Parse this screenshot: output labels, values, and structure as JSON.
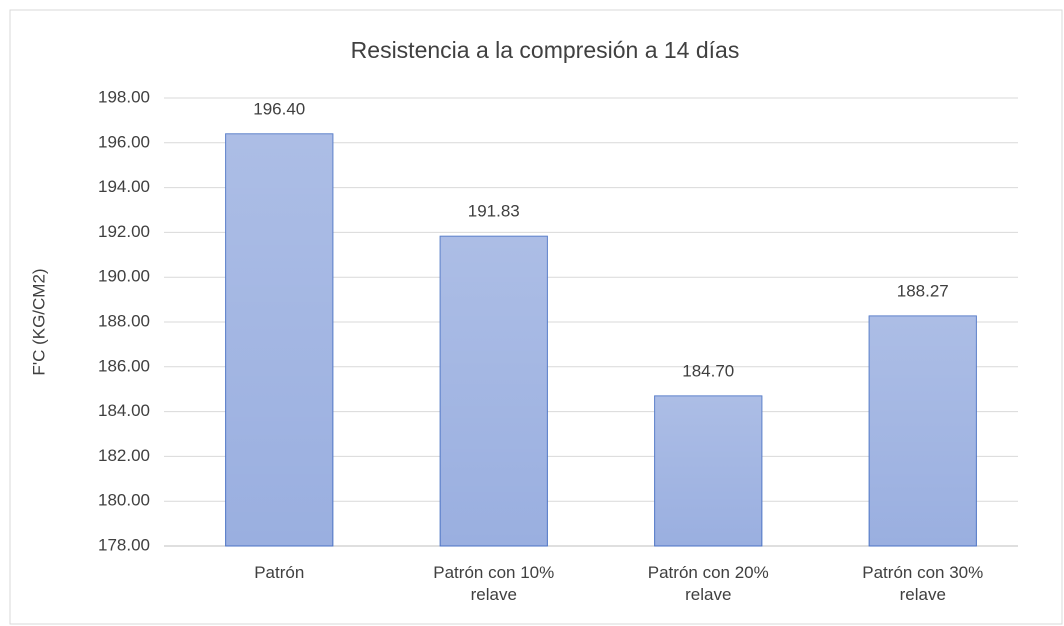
{
  "chart_data": {
    "type": "bar",
    "title": "Resistencia a la compresión a 14 días",
    "y_label": "F'C (KG/CM2)",
    "categories": [
      "Patrón",
      "Patrón con 10% relave",
      "Patrón con 20% relave",
      "Patrón con 30% relave"
    ],
    "values": [
      196.4,
      191.83,
      184.7,
      188.27
    ],
    "value_labels": [
      "196.40",
      "191.83",
      "184.70",
      "188.27"
    ],
    "color": "#9aafe0",
    "ylim": [
      178,
      198
    ],
    "yticks": [
      {
        "value": 178,
        "label": "178.00"
      },
      {
        "value": 180,
        "label": "180.00"
      },
      {
        "value": 182,
        "label": "182.00"
      },
      {
        "value": 184,
        "label": "184.00"
      },
      {
        "value": 186,
        "label": "186.00"
      },
      {
        "value": 188,
        "label": "188.00"
      },
      {
        "value": 190,
        "label": "190.00"
      },
      {
        "value": 192,
        "label": "192.00"
      },
      {
        "value": 194,
        "label": "194.00"
      },
      {
        "value": 196,
        "label": "196.00"
      },
      {
        "value": 198,
        "label": "198.00"
      }
    ],
    "grid": true
  }
}
